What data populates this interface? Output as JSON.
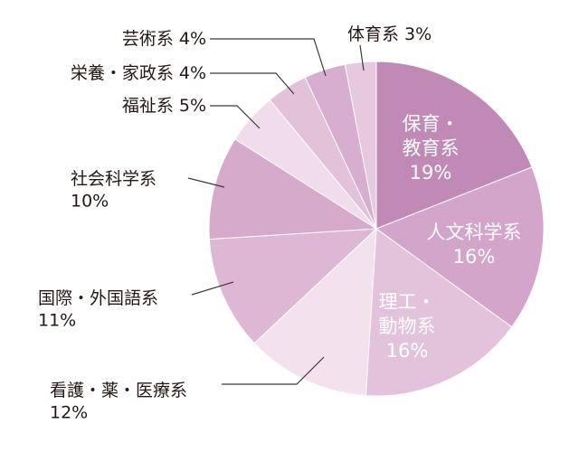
{
  "chart_data": {
    "type": "pie",
    "title": "",
    "start": "top",
    "direction": "clockwise",
    "slices": [
      {
        "label": "保育・教育系",
        "value": 19,
        "value_label": "19%",
        "color": "#c089b6"
      },
      {
        "label": "人文科学系",
        "value": 16,
        "value_label": "16%",
        "color": "#d3a5ca"
      },
      {
        "label": "理工・動物系",
        "value": 16,
        "value_label": "16%",
        "color": "#e3c3db"
      },
      {
        "label": "看護・薬・医療系",
        "value": 12,
        "value_label": "12%",
        "color": "#f3e1ee"
      },
      {
        "label": "国際・外国語系",
        "value": 11,
        "value_label": "11%",
        "color": "#ddb7d3"
      },
      {
        "label": "社会科学系",
        "value": 10,
        "value_label": "10%",
        "color": "#d6aacb"
      },
      {
        "label": "福祉系",
        "value": 5,
        "value_label": "5%",
        "color": "#f0dcea"
      },
      {
        "label": "栄養・家政系",
        "value": 4,
        "value_label": "4%",
        "color": "#e2c1d9"
      },
      {
        "label": "芸術系",
        "value": 4,
        "value_label": "4%",
        "color": "#d8aed0"
      },
      {
        "label": "体育系",
        "value": 3,
        "value_label": "3%",
        "color": "#e6c8df"
      }
    ],
    "inside_label_color": "#ffffff",
    "outside_label_color": "#231815",
    "leader_line_color": "#3e3a39"
  }
}
